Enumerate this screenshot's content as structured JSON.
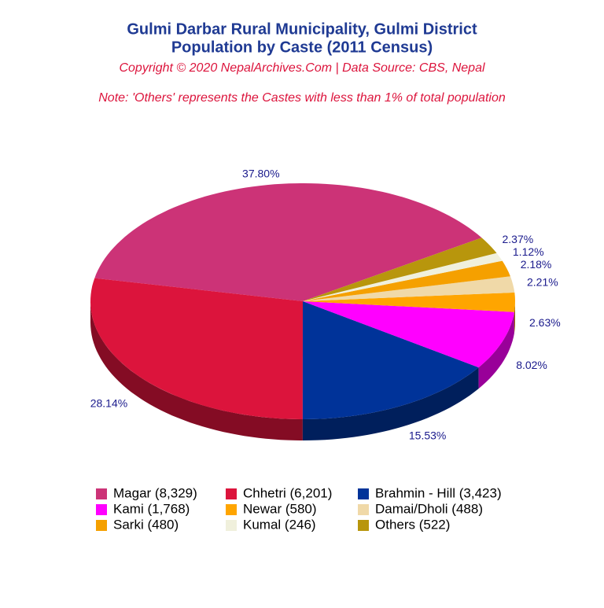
{
  "chart_data": {
    "type": "pie",
    "title": "Gulmi Darbar Rural Municipality, Gulmi District",
    "subtitle": "Population by Caste (2011 Census)",
    "copyright": "Copyright © 2020 NepalArchives.Com | Data Source: CBS, Nepal",
    "note": "Note: 'Others' represents the Castes with less than 1% of total population",
    "series": [
      {
        "name": "Magar (8,329)",
        "color": "#cc3377",
        "values": [
          37.8
        ],
        "value_labels": [
          "37.80%"
        ]
      },
      {
        "name": "Chhetri (6,201)",
        "color": "#dc143c",
        "values": [
          28.14
        ],
        "value_labels": [
          "28.14%"
        ]
      },
      {
        "name": "Brahmin - Hill (3,423)",
        "color": "#003399",
        "values": [
          15.53
        ],
        "value_labels": [
          "15.53%"
        ]
      },
      {
        "name": "Kami (1,768)",
        "color": "#ff00ff",
        "values": [
          8.02
        ],
        "value_labels": [
          "8.02%"
        ]
      },
      {
        "name": "Newar (580)",
        "color": "#ffa500",
        "values": [
          2.63
        ],
        "value_labels": [
          "2.63%"
        ]
      },
      {
        "name": "Damai/Dholi (488)",
        "color": "#f0d9a8",
        "values": [
          2.21
        ],
        "value_labels": [
          "2.21%"
        ]
      },
      {
        "name": "Sarki (480)",
        "color": "#f5a000",
        "values": [
          2.18
        ],
        "value_labels": [
          "2.18%"
        ]
      },
      {
        "name": "Kumal (246)",
        "color": "#f0f0dc",
        "values": [
          1.12
        ],
        "value_labels": [
          "1.12%"
        ]
      },
      {
        "name": "Others (522)",
        "color": "#b8960c",
        "values": [
          2.37
        ],
        "value_labels": [
          "2.37%"
        ]
      }
    ]
  }
}
